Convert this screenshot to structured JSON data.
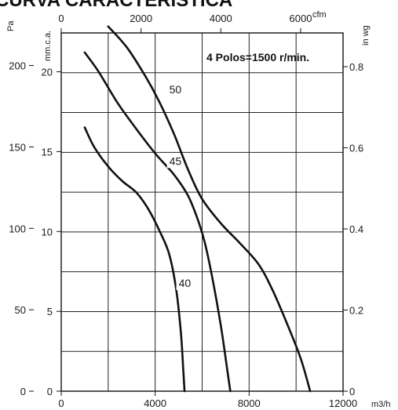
{
  "chart_data": {
    "type": "line",
    "title": "CURVA CARACTERISTICA",
    "annotation": "4 Polos=1500 r/min.",
    "x_primary": {
      "unit": "m3/h",
      "range": [
        0,
        12000
      ],
      "ticks": [
        "0",
        "4000",
        "8000",
        "12000"
      ]
    },
    "x_secondary": {
      "unit": "cfm",
      "ticks": [
        "0",
        "2000",
        "4000",
        "6000"
      ]
    },
    "y_left_pa": {
      "unit": "Pa",
      "range": [
        0,
        220
      ],
      "ticks": [
        "0",
        "50",
        "100",
        "150",
        "200"
      ]
    },
    "y_left_mmca": {
      "unit": "mm.c.a.",
      "ticks": [
        "0",
        "5",
        "10",
        "15",
        "20"
      ]
    },
    "y_right_inwg": {
      "unit": "in wg",
      "ticks": [
        "0",
        "0.2",
        "0.4",
        "0.6",
        "0.8"
      ]
    },
    "grid": true,
    "series": [
      {
        "name": "40",
        "x": [
          1000,
          1400,
          2000,
          2600,
          3200,
          3700,
          4200,
          4600,
          4900,
          5100,
          5200,
          5250
        ],
        "y": [
          162,
          150,
          138,
          129,
          122,
          112,
          98,
          84,
          62,
          35,
          12,
          0
        ]
      },
      {
        "name": "45",
        "x": [
          1000,
          1600,
          2400,
          3200,
          4000,
          4800,
          5400,
          5800,
          6100,
          6400,
          6800,
          7100,
          7200
        ],
        "y": [
          208,
          196,
          177,
          161,
          146,
          133,
          120,
          106,
          92,
          72,
          40,
          10,
          0
        ]
      },
      {
        "name": "50",
        "x": [
          2000,
          2800,
          3600,
          4200,
          4800,
          5400,
          6000,
          6800,
          7600,
          8400,
          9000,
          9600,
          10200,
          10600
        ],
        "y": [
          224,
          211,
          193,
          177,
          158,
          136,
          118,
          103,
          91,
          78,
          62,
          42,
          20,
          0
        ]
      }
    ]
  }
}
